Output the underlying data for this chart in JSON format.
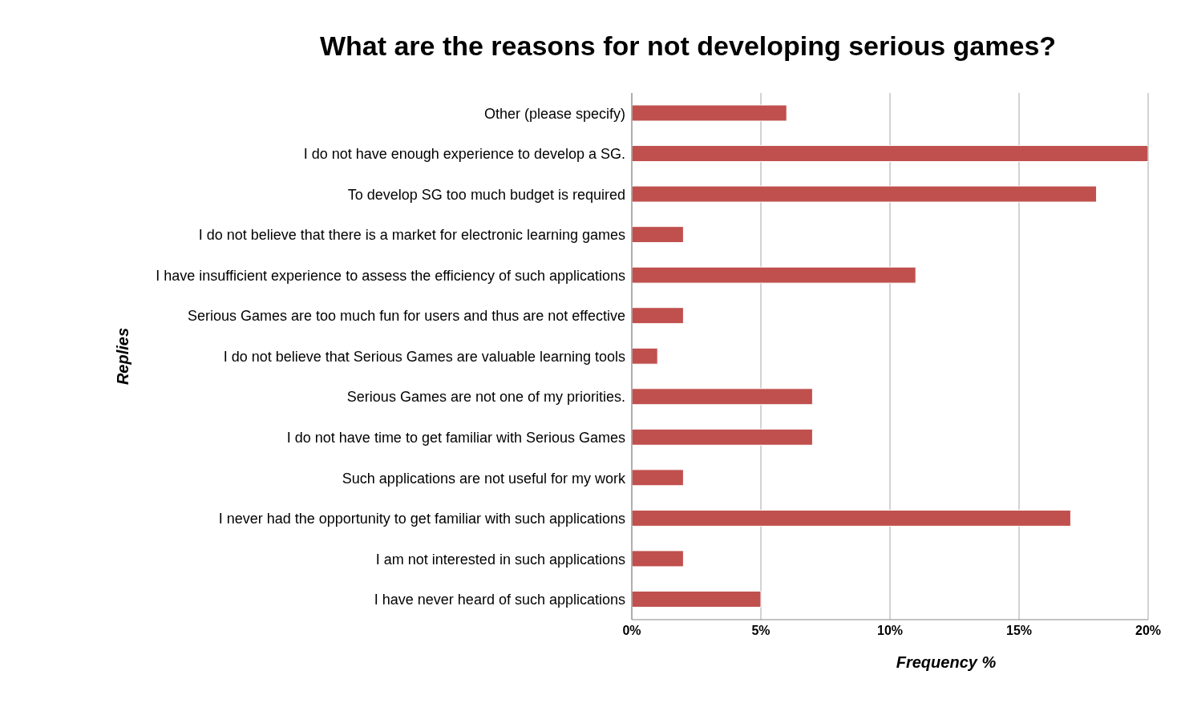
{
  "chart_data": {
    "type": "bar",
    "orientation": "horizontal",
    "title": "What are the reasons for not developing serious games?",
    "xlabel": "Frequency %",
    "ylabel": "Replies",
    "categories": [
      "Other (please specify)",
      "I do not have enough experience to develop a SG.",
      "To develop SG too much budget is required",
      "I do not believe that there is a market for electronic learning games",
      "I have insufficient experience to assess the efficiency of such applications",
      "Serious Games are too much fun for users and thus are not effective",
      "I do not believe that Serious Games are valuable learning tools",
      "Serious Games are not one of my priorities.",
      "I do not have time to get familiar with Serious Games",
      "Such applications are not useful for my work",
      "I never had the opportunity to get familiar with such applications",
      "I am not interested in such applications",
      "I have never heard of such applications"
    ],
    "values": [
      6,
      20,
      18,
      2,
      11,
      2,
      1,
      7,
      7,
      2,
      17,
      2,
      5
    ],
    "color": "#c0504d",
    "xlim": [
      0,
      20
    ],
    "xticks": [
      {
        "value": 0,
        "label": "0%"
      },
      {
        "value": 5,
        "label": "5%"
      },
      {
        "value": 10,
        "label": "10%"
      },
      {
        "value": 15,
        "label": "15%"
      },
      {
        "value": 20,
        "label": "20%"
      }
    ],
    "grid": "x",
    "legend": false
  }
}
